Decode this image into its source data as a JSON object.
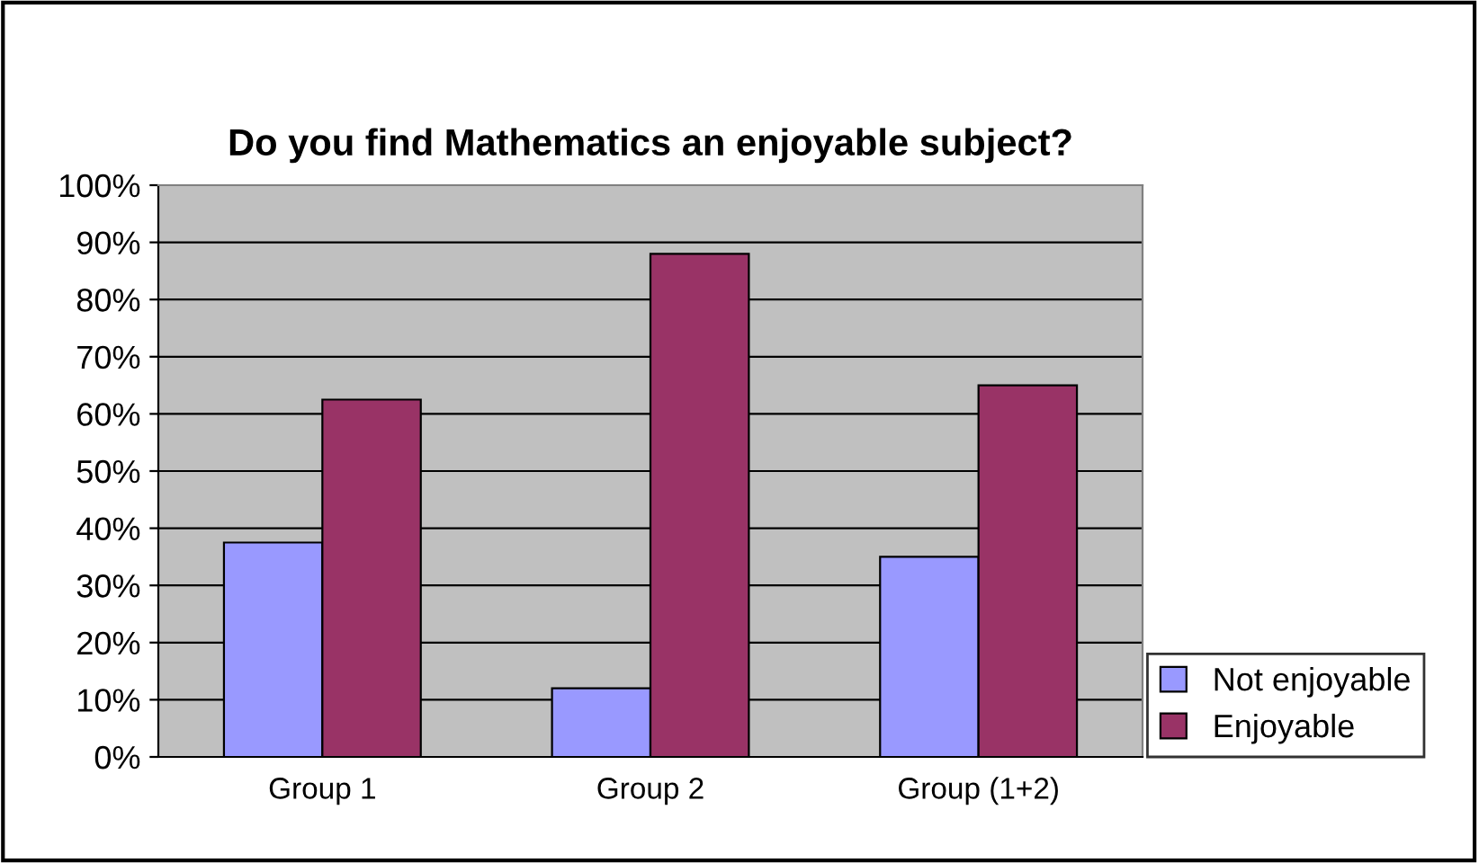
{
  "chart_data": {
    "type": "bar",
    "title": "Do you find Mathematics an enjoyable subject?",
    "categories": [
      "Group 1",
      "Group 2",
      "Group (1+2)"
    ],
    "series": [
      {
        "name": "Not enjoyable",
        "color": "#9999ff",
        "values": [
          37.5,
          12,
          35
        ]
      },
      {
        "name": "Enjoyable",
        "color": "#993366",
        "values": [
          62.5,
          88,
          65
        ]
      }
    ],
    "ylim": [
      0,
      100
    ],
    "yticks": [
      {
        "value": 0,
        "label": "0%"
      },
      {
        "value": 10,
        "label": "10%"
      },
      {
        "value": 20,
        "label": "20%"
      },
      {
        "value": 30,
        "label": "30%"
      },
      {
        "value": 40,
        "label": "40%"
      },
      {
        "value": 50,
        "label": "50%"
      },
      {
        "value": 60,
        "label": "60%"
      },
      {
        "value": 70,
        "label": "70%"
      },
      {
        "value": 80,
        "label": "80%"
      },
      {
        "value": 90,
        "label": "90%"
      },
      {
        "value": 100,
        "label": "100%"
      }
    ],
    "grid": "y",
    "legend": "right"
  }
}
